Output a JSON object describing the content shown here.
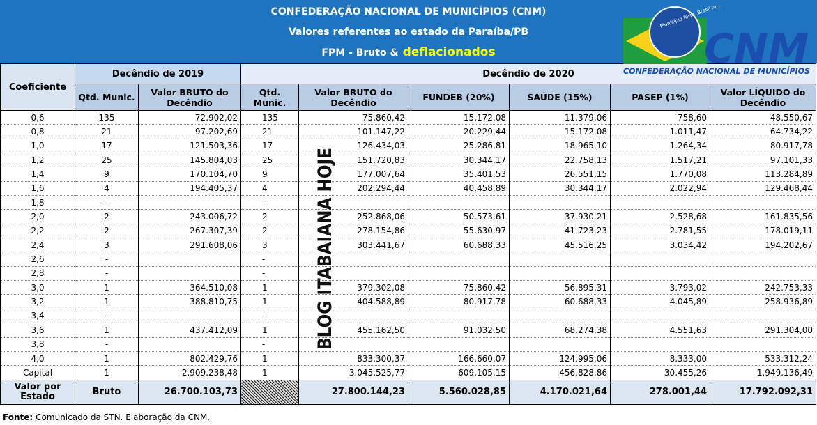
{
  "header": {
    "title": "CONFEDERAÇÃO NACIONAL DE MUNICÍPIOS (CNM)",
    "subtitle": "Valores referentes ao estado da Paraíba/PB",
    "line3_prefix": "FPM - Bruto &",
    "line3_highlight": "deflacionados"
  },
  "logo": {
    "motto": "Município forte, Brasil forte.",
    "acronym": "CNM",
    "name": "CONFEDERAÇÃO NACIONAL DE MUNICÍPIOS"
  },
  "watermark": "BLOG ITABAIANA HOJE",
  "table": {
    "group_headers": [
      "Coeficiente",
      "Decêndio de 2019",
      "Decêndio de 2020"
    ],
    "columns": [
      "Qtd. Munic.",
      "Valor BRUTO do Decêndio",
      "Qtd. Munic.",
      "Valor BRUTO do Decêndio",
      "FUNDEB (20%)",
      "SAÚDE (15%)",
      "PASEP (1%)",
      "Valor LÍQUIDO do Decêndio"
    ],
    "rows": [
      [
        "0,6",
        "135",
        "72.902,02",
        "135",
        "75.860,42",
        "15.172,08",
        "11.379,06",
        "758,60",
        "48.550,67"
      ],
      [
        "0,8",
        "21",
        "97.202,69",
        "21",
        "101.147,22",
        "20.229,44",
        "15.172,08",
        "1.011,47",
        "64.734,22"
      ],
      [
        "1,0",
        "17",
        "121.503,36",
        "17",
        "126.434,03",
        "25.286,81",
        "18.965,10",
        "1.264,34",
        "80.917,78"
      ],
      [
        "1,2",
        "25",
        "145.804,03",
        "25",
        "151.720,83",
        "30.344,17",
        "22.758,13",
        "1.517,21",
        "97.101,33"
      ],
      [
        "1,4",
        "9",
        "170.104,70",
        "9",
        "177.007,64",
        "35.401,53",
        "26.551,15",
        "1.770,08",
        "113.284,89"
      ],
      [
        "1,6",
        "4",
        "194.405,37",
        "4",
        "202.294,44",
        "40.458,89",
        "30.344,17",
        "2.022,94",
        "129.468,44"
      ],
      [
        "1,8",
        "-",
        null,
        "-",
        null,
        null,
        null,
        null,
        null
      ],
      [
        "2,0",
        "2",
        "243.006,72",
        "2",
        "252.868,06",
        "50.573,61",
        "37.930,21",
        "2.528,68",
        "161.835,56"
      ],
      [
        "2,2",
        "2",
        "267.307,39",
        "2",
        "278.154,86",
        "55.630,97",
        "41.723,23",
        "2.781,55",
        "178.019,11"
      ],
      [
        "2,4",
        "3",
        "291.608,06",
        "3",
        "303.441,67",
        "60.688,33",
        "45.516,25",
        "3.034,42",
        "194.202,67"
      ],
      [
        "2,6",
        "-",
        null,
        "-",
        null,
        null,
        null,
        null,
        null
      ],
      [
        "2,8",
        "-",
        null,
        "-",
        null,
        null,
        null,
        null,
        null
      ],
      [
        "3,0",
        "1",
        "364.510,08",
        "1",
        "379.302,08",
        "75.860,42",
        "56.895,31",
        "3.793,02",
        "242.753,33"
      ],
      [
        "3,2",
        "1",
        "388.810,75",
        "1",
        "404.588,89",
        "80.917,78",
        "60.688,33",
        "4.045,89",
        "258.936,89"
      ],
      [
        "3,4",
        "-",
        null,
        "-",
        null,
        null,
        null,
        null,
        null
      ],
      [
        "3,6",
        "1",
        "437.412,09",
        "1",
        "455.162,50",
        "91.032,50",
        "68.274,38",
        "4.551,63",
        "291.304,00"
      ],
      [
        "3,8",
        "-",
        null,
        "-",
        null,
        null,
        null,
        null,
        null
      ],
      [
        "4,0",
        "1",
        "802.429,76",
        "1",
        "833.300,37",
        "166.660,07",
        "124.995,06",
        "8.333,00",
        "533.312,24"
      ],
      [
        "Capital",
        "1",
        "2.909.238,48",
        "1",
        "3.045.525,77",
        "609.105,15",
        "456.828,86",
        "30.455,26",
        "1.949.136,49"
      ]
    ],
    "total": [
      "Valor por Estado",
      "Bruto",
      "26.700.103,73",
      null,
      "27.800.144,23",
      "5.560.028,85",
      "4.170.021,64",
      "278.001,44",
      "17.792.092,31"
    ]
  },
  "footer": {
    "label": "Fonte:",
    "text": "Comunicado da STN. Elaboração da CNM."
  }
}
